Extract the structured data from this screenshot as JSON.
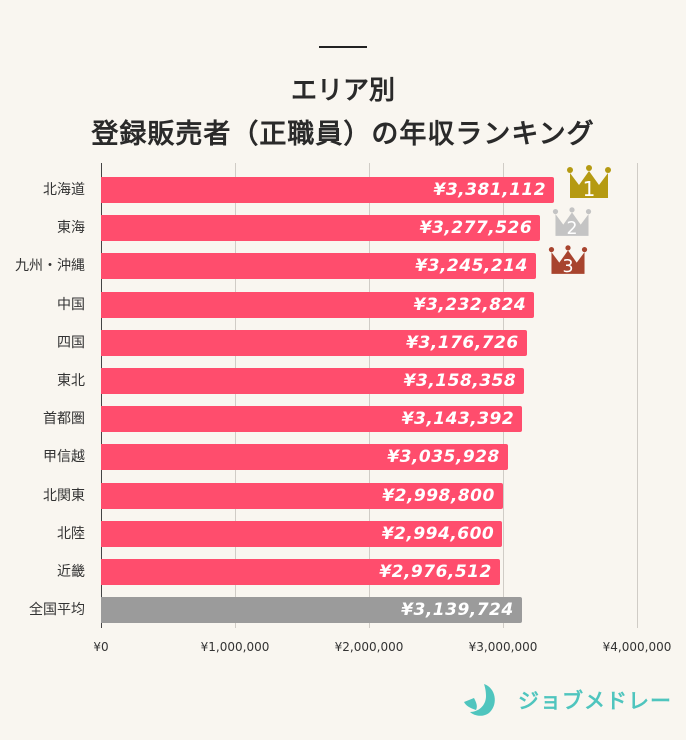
{
  "header": {
    "title_line1": "エリア別",
    "title_line2": "登録販売者（正職員）の年収ランキング"
  },
  "colors": {
    "bar": "#ff4d6d",
    "average_bar": "#9b9b9b",
    "gold": "#b59a12",
    "silver": "#c4c4c4",
    "bronze": "#a8442e",
    "brand": "#4fc5be",
    "background": "#f9f6f0"
  },
  "chart_data": {
    "type": "bar",
    "orientation": "horizontal",
    "title": "エリア別 登録販売者（正職員）の年収ランキング",
    "xlabel": "",
    "ylabel": "",
    "xlim": [
      0,
      4000000
    ],
    "x_ticks": [
      "¥0",
      "¥1,000,000",
      "¥2,000,000",
      "¥3,000,000",
      "¥4,000,000"
    ],
    "grid": true,
    "categories": [
      "北海道",
      "東海",
      "九州・沖縄",
      "中国",
      "四国",
      "東北",
      "首都圏",
      "甲信越",
      "北関東",
      "北陸",
      "近畿",
      "全国平均"
    ],
    "values": [
      3381112,
      3277526,
      3245214,
      3232824,
      3176726,
      3158358,
      3143392,
      3035928,
      2998800,
      2994600,
      2976512,
      3139724
    ],
    "value_labels": [
      "¥3,381,112",
      "¥3,277,526",
      "¥3,245,214",
      "¥3,232,824",
      "¥3,176,726",
      "¥3,158,358",
      "¥3,143,392",
      "¥3,035,928",
      "¥2,998,800",
      "¥2,994,600",
      "¥2,976,512",
      "¥3,139,724"
    ],
    "highlight": {
      "全国平均": "gray"
    },
    "rank_badges": [
      {
        "category": "北海道",
        "rank": "1",
        "color": "gold"
      },
      {
        "category": "東海",
        "rank": "2",
        "color": "silver"
      },
      {
        "category": "九州・沖縄",
        "rank": "3",
        "color": "bronze"
      }
    ]
  },
  "footer": {
    "brand_name": "ジョブメドレー"
  }
}
